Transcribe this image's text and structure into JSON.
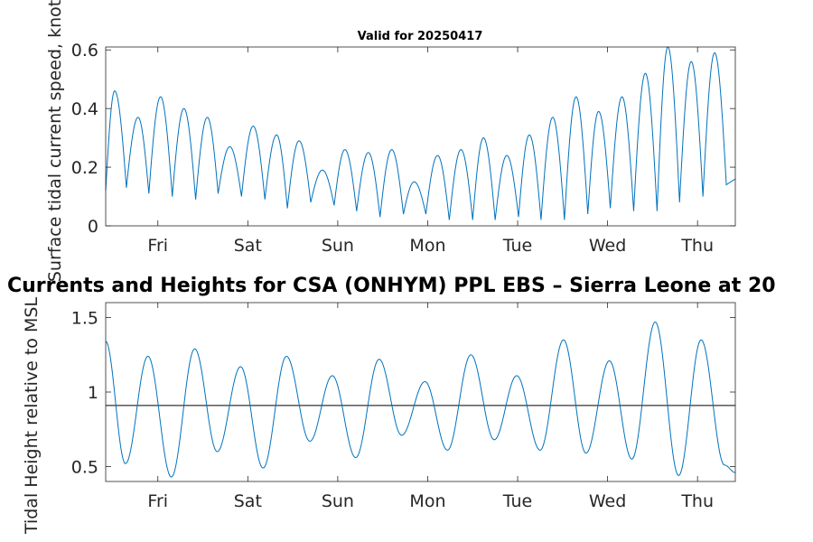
{
  "chart_data": [
    {
      "type": "line",
      "title": "Valid for 20250417",
      "xlabel": "",
      "ylabel": "Surface tidal current speed, knots",
      "ylim": [
        0,
        0.61
      ],
      "yticks": [
        0,
        0.2,
        0.4,
        0.6
      ],
      "ytick_labels": [
        "0",
        "0.2",
        "0.4",
        "0.6"
      ],
      "xlim": [
        0,
        7.0
      ],
      "xticks": [
        0.58,
        1.58,
        2.58,
        3.58,
        4.58,
        5.58,
        6.58
      ],
      "xtick_labels": [
        "Fri",
        "Sat",
        "Sun",
        "Mon",
        "Tue",
        "Wed",
        "Thu"
      ],
      "grid": false,
      "color": "#0072BD",
      "series": [
        {
          "name": "current speed",
          "peaks": [
            [
              0.1,
              0.46
            ],
            [
              0.36,
              0.37
            ],
            [
              0.61,
              0.44
            ],
            [
              0.87,
              0.4
            ],
            [
              1.13,
              0.37
            ],
            [
              1.38,
              0.27
            ],
            [
              1.64,
              0.34
            ],
            [
              1.9,
              0.31
            ],
            [
              2.15,
              0.29
            ],
            [
              2.41,
              0.19
            ],
            [
              2.66,
              0.26
            ],
            [
              2.92,
              0.25
            ],
            [
              3.18,
              0.26
            ],
            [
              3.43,
              0.15
            ],
            [
              3.69,
              0.24
            ],
            [
              3.95,
              0.26
            ],
            [
              4.2,
              0.3
            ],
            [
              4.46,
              0.24
            ],
            [
              4.71,
              0.31
            ],
            [
              4.97,
              0.37
            ],
            [
              5.23,
              0.44
            ],
            [
              5.48,
              0.39
            ],
            [
              5.74,
              0.44
            ],
            [
              6.0,
              0.52
            ],
            [
              6.25,
              0.61
            ],
            [
              6.51,
              0.56
            ],
            [
              6.77,
              0.59
            ]
          ],
          "troughs": [
            [
              0.0,
              0.12
            ],
            [
              0.23,
              0.13
            ],
            [
              0.48,
              0.11
            ],
            [
              0.74,
              0.1
            ],
            [
              1.0,
              0.09
            ],
            [
              1.25,
              0.11
            ],
            [
              1.51,
              0.1
            ],
            [
              1.77,
              0.09
            ],
            [
              2.02,
              0.06
            ],
            [
              2.28,
              0.08
            ],
            [
              2.54,
              0.07
            ],
            [
              2.79,
              0.05
            ],
            [
              3.05,
              0.03
            ],
            [
              3.31,
              0.04
            ],
            [
              3.56,
              0.04
            ],
            [
              3.82,
              0.02
            ],
            [
              4.08,
              0.02
            ],
            [
              4.33,
              0.02
            ],
            [
              4.59,
              0.03
            ],
            [
              4.84,
              0.02
            ],
            [
              5.1,
              0.02
            ],
            [
              5.36,
              0.04
            ],
            [
              5.61,
              0.06
            ],
            [
              5.87,
              0.05
            ],
            [
              6.13,
              0.05
            ],
            [
              6.38,
              0.08
            ],
            [
              6.64,
              0.1
            ],
            [
              6.9,
              0.14
            ],
            [
              7.0,
              0.16
            ]
          ]
        }
      ]
    },
    {
      "type": "line",
      "title": "Currents and Heights for CSA (ONHYM) PPL EBS  – Sierra Leone at 20",
      "xlabel": "",
      "ylabel": "Tidal Height relative to MSL",
      "ylim": [
        0.4,
        1.6
      ],
      "yticks": [
        0.5,
        1,
        1.5
      ],
      "ytick_labels": [
        "0.5",
        "1",
        "1.5"
      ],
      "xlim": [
        0,
        7.0
      ],
      "xticks": [
        0.58,
        1.58,
        2.58,
        3.58,
        4.58,
        5.58,
        6.58
      ],
      "xtick_labels": [
        "Fri",
        "Sat",
        "Sun",
        "Mon",
        "Tue",
        "Wed",
        "Thu"
      ],
      "grid": false,
      "color": "#0072BD",
      "reference_line": {
        "y": 0.91,
        "color": "#000000"
      },
      "series": [
        {
          "name": "tidal height",
          "extrema": [
            [
              0.0,
              1.34
            ],
            [
              0.22,
              0.52
            ],
            [
              0.47,
              1.24
            ],
            [
              0.73,
              0.43
            ],
            [
              0.99,
              1.29
            ],
            [
              1.24,
              0.6
            ],
            [
              1.5,
              1.17
            ],
            [
              1.75,
              0.49
            ],
            [
              2.01,
              1.24
            ],
            [
              2.27,
              0.67
            ],
            [
              2.52,
              1.11
            ],
            [
              2.78,
              0.56
            ],
            [
              3.04,
              1.22
            ],
            [
              3.29,
              0.71
            ],
            [
              3.55,
              1.07
            ],
            [
              3.8,
              0.61
            ],
            [
              4.06,
              1.25
            ],
            [
              4.32,
              0.68
            ],
            [
              4.57,
              1.11
            ],
            [
              4.83,
              0.61
            ],
            [
              5.09,
              1.35
            ],
            [
              5.34,
              0.59
            ],
            [
              5.6,
              1.21
            ],
            [
              5.85,
              0.55
            ],
            [
              6.11,
              1.47
            ],
            [
              6.37,
              0.44
            ],
            [
              6.62,
              1.35
            ],
            [
              6.88,
              0.51
            ],
            [
              7.0,
              0.46
            ]
          ]
        }
      ]
    }
  ]
}
